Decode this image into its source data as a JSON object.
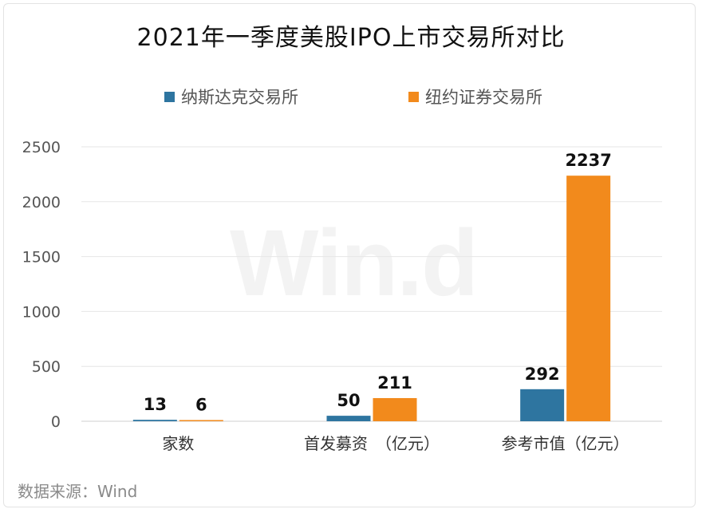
{
  "chart_data": {
    "type": "bar",
    "title": "2021年一季度美股IPO上市交易所对比",
    "categories": [
      "家数",
      "首发募资　（亿元）",
      "参考市值（亿元）"
    ],
    "series": [
      {
        "name": "纳斯达克交易所",
        "values": [
          13,
          50,
          292
        ],
        "color": "#2e75a0"
      },
      {
        "name": "纽约证券交易所",
        "values": [
          6,
          211,
          2237
        ],
        "color": "#f28a1c"
      }
    ],
    "ylim": [
      0,
      2500
    ],
    "yticks": [
      0,
      500,
      1000,
      1500,
      2000,
      2500
    ],
    "grid": true,
    "legend_position": "top"
  },
  "watermark": "Win.d",
  "source": "数据来源：Wind"
}
